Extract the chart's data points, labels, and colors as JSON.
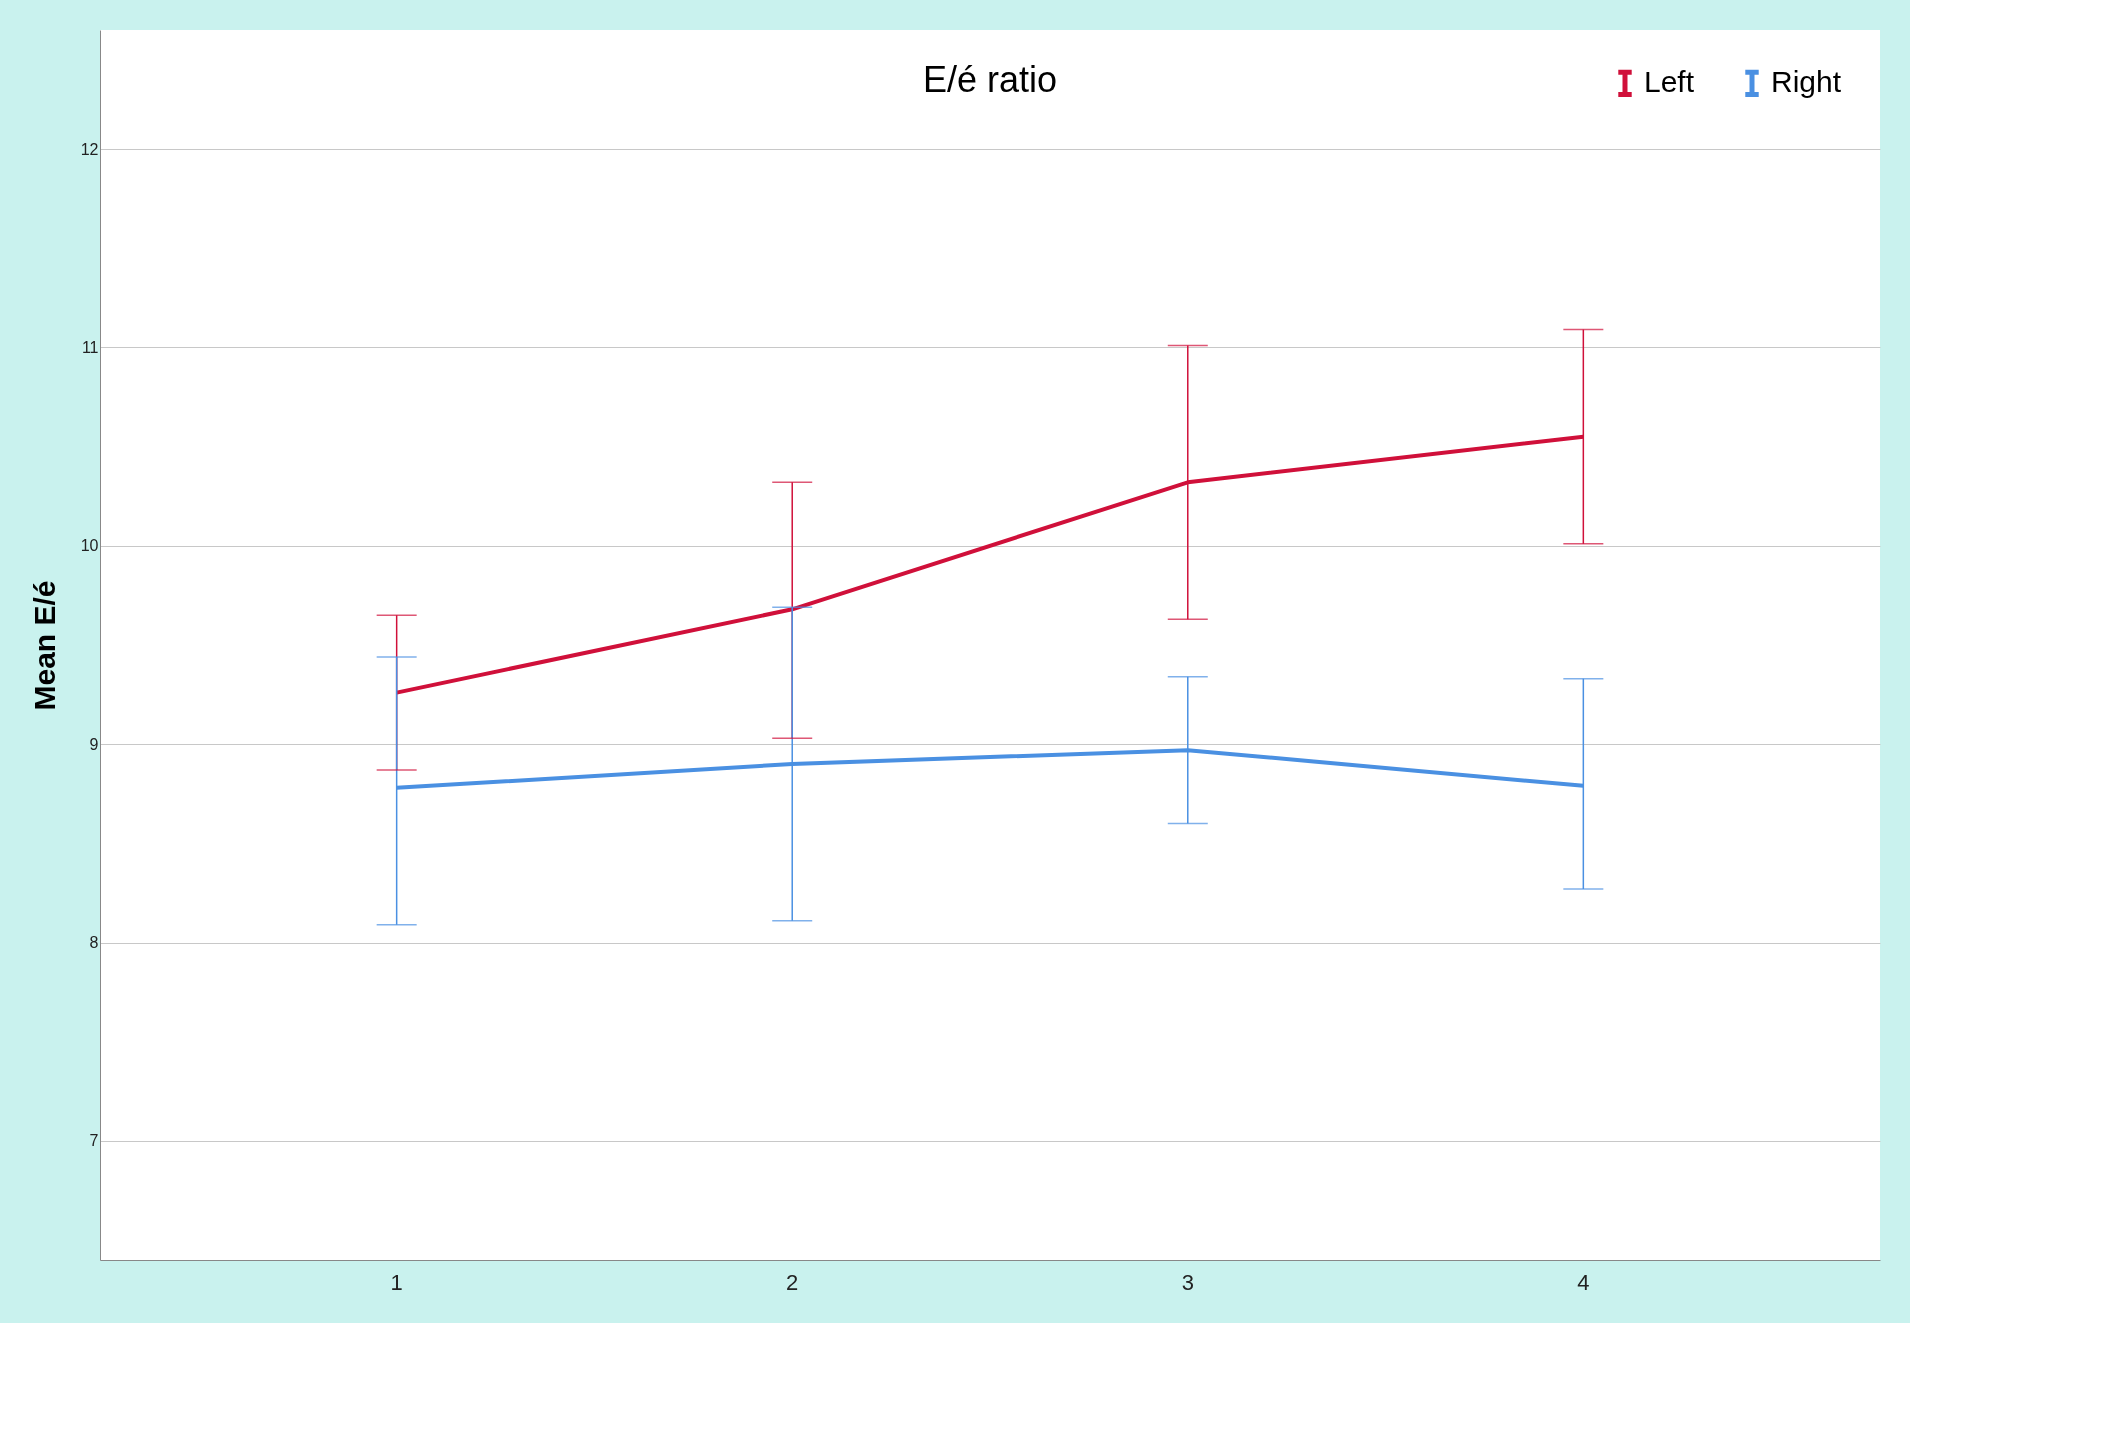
{
  "chart_data": {
    "type": "line",
    "title": "E/é ratio",
    "ylabel": "Mean E/é",
    "categories": [
      "1",
      "2",
      "3",
      "4"
    ],
    "series": [
      {
        "name": "Left",
        "color": "#d0103a",
        "values": [
          9.26,
          9.68,
          10.32,
          10.55
        ],
        "errors": [
          [
            8.87,
            9.65
          ],
          [
            9.03,
            10.32
          ],
          [
            9.63,
            11.01
          ],
          [
            10.01,
            11.09
          ]
        ]
      },
      {
        "name": "Right",
        "color": "#4a90e2",
        "values": [
          8.78,
          8.9,
          8.97,
          8.79
        ],
        "errors": [
          [
            8.09,
            9.44
          ],
          [
            8.11,
            9.69
          ],
          [
            8.6,
            9.34
          ],
          [
            8.27,
            9.33
          ]
        ]
      }
    ],
    "ylim": [
      6.4,
      12.6
    ],
    "yticks": [
      7,
      8,
      9,
      10,
      11,
      12
    ],
    "grid": "y",
    "legend": "top right",
    "marker": "none",
    "line_style": "solid"
  }
}
